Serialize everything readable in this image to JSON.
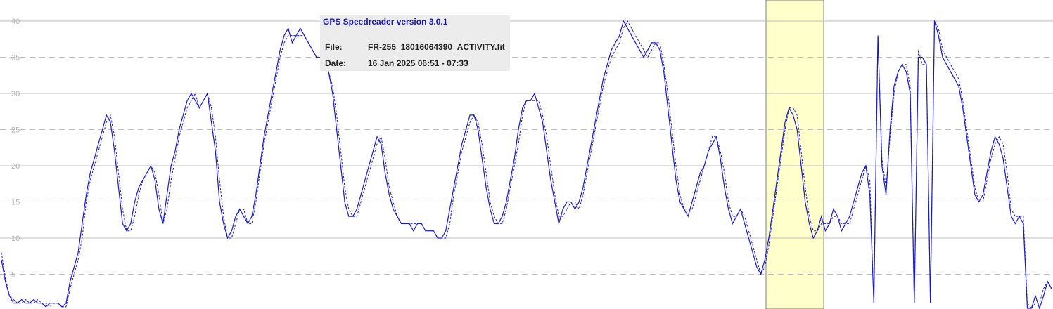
{
  "info": {
    "title": "GPS Speedreader version 3.0.1",
    "file_label": "File:",
    "file_value": "FR-255_18016064390_ACTIVITY.fit",
    "date_label": "Date:",
    "date_value": "16 Jan 2025 06:51 - 07:33"
  },
  "colors": {
    "line": "#1a1acc",
    "highlight": "#ffffcc",
    "grid_solid": "#bdbdbd",
    "grid_dashed": "#bdbdbd",
    "tick": "#b4b4b4"
  },
  "chart_data": {
    "type": "line",
    "title": "",
    "xlabel": "",
    "ylabel": "",
    "ylim": [
      0,
      42
    ],
    "y_ticks": [
      "5",
      "10",
      "15",
      "20",
      "25",
      "30",
      "35",
      "40"
    ],
    "grid": "solid at 10, 20, 30, 40; dashed at 5, 15, 25, 35",
    "highlight_band": "yellow band near center-right",
    "series": [
      {
        "style": "solid",
        "y": [
          7,
          4,
          2,
          1,
          1,
          1.5,
          1,
          1,
          1.5,
          1,
          1,
          0.5,
          1,
          1,
          1,
          0.5,
          1,
          4,
          6,
          8,
          12,
          16,
          19,
          21,
          23,
          25,
          27,
          26,
          22,
          17,
          12,
          11,
          12,
          15,
          17,
          18,
          19,
          20,
          18,
          14,
          12,
          16,
          20,
          22,
          25,
          27,
          29,
          30,
          29,
          28,
          29,
          30,
          26,
          22,
          15,
          12,
          10,
          11,
          13,
          14,
          13,
          12,
          13,
          16,
          20,
          24,
          27,
          30,
          33,
          36,
          38,
          39,
          37,
          38,
          39,
          38,
          37,
          36,
          35,
          35,
          34,
          33,
          30,
          25,
          20,
          15,
          13,
          13,
          14,
          16,
          18,
          20,
          22,
          24,
          23,
          19,
          16,
          14,
          13,
          12,
          12,
          12,
          11,
          12,
          12,
          11,
          11,
          11,
          10,
          10,
          11,
          14,
          17,
          20,
          23,
          25,
          27,
          27,
          25,
          21,
          17,
          14,
          12,
          12,
          13,
          15,
          18,
          21,
          25,
          28,
          29,
          29,
          30,
          28,
          26,
          22,
          18,
          15,
          12,
          14,
          15,
          15,
          14,
          15,
          17,
          20,
          23,
          26,
          29,
          32,
          34,
          36,
          37,
          38,
          40,
          39,
          38,
          37,
          36,
          35,
          36,
          37,
          37,
          36,
          33,
          28,
          23,
          18,
          15,
          14,
          13,
          15,
          17,
          19,
          20,
          22,
          23,
          24,
          21,
          17,
          14,
          12,
          13,
          14,
          12,
          10,
          8,
          6,
          5,
          7,
          10,
          14,
          18,
          22,
          26,
          28,
          27,
          25,
          20,
          15,
          12,
          10,
          11,
          13,
          11,
          12,
          14,
          13,
          11,
          12,
          13,
          15,
          17,
          19,
          20,
          16,
          1,
          38,
          20,
          16,
          25,
          31,
          33,
          34,
          33,
          30,
          1,
          35,
          35,
          34,
          1,
          40,
          38,
          35,
          34,
          33,
          32,
          31,
          28,
          24,
          20,
          16,
          15,
          16,
          19,
          22,
          24,
          23,
          21,
          17,
          13,
          12,
          13,
          12,
          0,
          0,
          2,
          0,
          2,
          4,
          3
        ]
      },
      {
        "style": "dashed",
        "y": [
          8,
          4.5,
          2,
          1.5,
          1,
          1,
          1.5,
          1,
          1,
          1.5,
          1,
          1,
          0.5,
          1,
          1,
          0.5,
          0.5,
          3,
          5,
          7,
          10,
          15,
          18,
          20,
          22,
          24,
          26,
          27,
          24,
          19,
          14,
          11,
          11,
          13,
          16,
          18,
          19,
          20,
          19,
          16,
          12,
          14,
          18,
          21,
          24,
          26,
          28,
          29,
          30,
          28,
          29,
          30,
          28,
          24,
          18,
          13,
          10,
          10,
          12,
          14,
          14,
          12,
          12,
          15,
          19,
          23,
          26,
          29,
          32,
          35,
          37,
          38,
          38,
          38,
          38,
          38,
          37,
          36,
          35,
          35,
          34,
          33,
          31,
          27,
          22,
          17,
          14,
          13,
          13,
          15,
          17,
          19,
          21,
          23,
          24,
          21,
          17,
          15,
          13,
          12,
          12,
          12,
          12,
          12,
          12,
          11,
          11,
          11,
          10,
          10,
          10,
          12,
          16,
          19,
          22,
          24,
          26,
          27,
          26,
          23,
          19,
          15,
          13,
          12,
          12,
          14,
          17,
          20,
          23,
          27,
          29,
          29,
          29,
          29,
          27,
          24,
          20,
          16,
          13,
          13,
          14,
          15,
          15,
          14,
          16,
          19,
          22,
          25,
          28,
          31,
          33,
          35,
          36,
          37,
          39,
          40,
          39,
          38,
          37,
          36,
          35,
          36,
          37,
          37,
          34,
          30,
          25,
          20,
          16,
          14,
          14,
          14,
          16,
          18,
          20,
          22,
          24,
          24,
          22,
          19,
          15,
          13,
          13,
          14,
          13,
          11,
          9,
          7,
          5,
          6,
          9,
          13,
          17,
          21,
          25,
          28,
          28,
          27,
          22,
          17,
          13,
          11,
          11,
          12,
          12,
          12,
          13,
          13,
          12,
          12,
          12,
          14,
          16,
          18,
          20,
          18,
          1,
          38,
          21,
          17,
          24,
          30,
          33,
          34,
          34,
          31,
          1,
          36,
          34,
          34,
          1,
          40,
          39,
          36,
          35,
          34,
          33,
          32,
          29,
          25,
          21,
          17,
          15,
          15,
          18,
          21,
          23,
          24,
          23,
          19,
          14,
          13,
          13,
          13,
          1,
          0,
          1,
          1,
          3,
          4,
          3
        ]
      }
    ]
  }
}
